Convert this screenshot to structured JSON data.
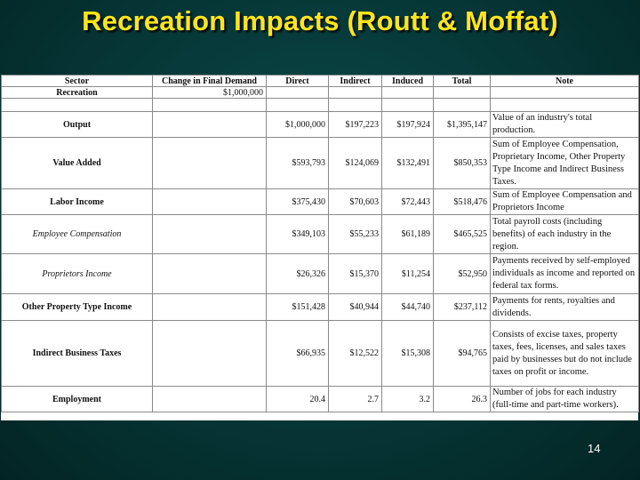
{
  "slide": {
    "title": "Recreation Impacts (Routt & Moffat)",
    "page_number": "14"
  },
  "table": {
    "headers": [
      "Sector",
      "Change in Final Demand",
      "Direct",
      "Indirect",
      "Induced",
      "Total",
      "Note"
    ],
    "recreation": {
      "sector": "Recreation",
      "change": "$1,000,000"
    },
    "rows": [
      {
        "sector": "Output",
        "direct": "$1,000,000",
        "indirect": "$197,223",
        "induced": "$197,924",
        "total": "$1,395,147",
        "note": "Value of an industry's total production."
      },
      {
        "sector": "Value Added",
        "direct": "$593,793",
        "indirect": "$124,069",
        "induced": "$132,491",
        "total": "$850,353",
        "note": "Sum of Employee Compensation, Proprietary Income, Other Property Type Income and Indirect Business Taxes."
      },
      {
        "sector": "Labor Income",
        "direct": "$375,430",
        "indirect": "$70,603",
        "induced": "$72,443",
        "total": "$518,476",
        "note": "Sum of Employee Compensation and Proprietors Income"
      },
      {
        "sector": "Employee Compensation",
        "direct": "$349,103",
        "indirect": "$55,233",
        "induced": "$61,189",
        "total": "$465,525",
        "note": "Total payroll costs (including benefits) of each industry in the region."
      },
      {
        "sector": "Proprietors Income",
        "direct": "$26,326",
        "indirect": "$15,370",
        "induced": "$11,254",
        "total": "$52,950",
        "note": "Payments received by self-employed individuals as income and reported on federal tax forms."
      },
      {
        "sector": "Other Property Type Income",
        "direct": "$151,428",
        "indirect": "$40,944",
        "induced": "$44,740",
        "total": "$237,112",
        "note": "Payments for rents, royalties and dividends."
      },
      {
        "sector": "Indirect Business Taxes",
        "direct": "$66,935",
        "indirect": "$12,522",
        "induced": "$15,308",
        "total": "$94,765",
        "note": "Consists of excise taxes, property taxes, fees, licenses, and sales taxes paid by businesses but do not include taxes on profit or income."
      },
      {
        "sector": "Employment",
        "direct": "20.4",
        "indirect": "2.7",
        "induced": "3.2",
        "total": "26.3",
        "note": "Number of jobs for each industry (full-time and part-time workers)."
      }
    ]
  }
}
